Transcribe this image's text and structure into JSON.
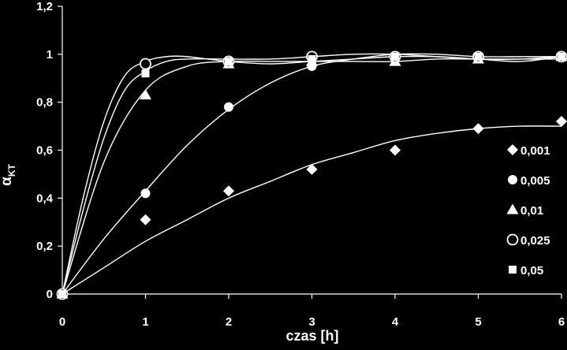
{
  "colors": {
    "background": "#000000",
    "foreground": "#ffffff"
  },
  "chart_data": {
    "type": "scatter",
    "title": "",
    "xlabel": "czas [h]",
    "ylabel_main": "α",
    "ylabel_sub": "KT",
    "xlim": [
      0,
      6
    ],
    "ylim": [
      0,
      1.2
    ],
    "xticks": [
      0,
      1,
      2,
      3,
      4,
      5,
      6
    ],
    "xtick_labels": [
      "0",
      "1",
      "2",
      "3",
      "4",
      "5",
      "6"
    ],
    "yticks": [
      0,
      0.2,
      0.4,
      0.6,
      0.8,
      1.0,
      1.2
    ],
    "ytick_labels": [
      "0",
      "0,2",
      "0,4",
      "0,6",
      "0,8",
      "1",
      "1,2"
    ],
    "grid": false,
    "legend_position": "right",
    "trendlines": "smooth curves through each series",
    "series": [
      {
        "name": "0,001",
        "marker": "diamond",
        "x": [
          0,
          1,
          2,
          3,
          4,
          5,
          6
        ],
        "y": [
          0,
          0.31,
          0.43,
          0.52,
          0.6,
          0.69,
          0.72
        ]
      },
      {
        "name": "0,005",
        "marker": "circle",
        "x": [
          0,
          1,
          2,
          3,
          4,
          5,
          6
        ],
        "y": [
          0,
          0.42,
          0.78,
          0.95,
          0.99,
          0.99,
          0.99
        ]
      },
      {
        "name": "0,01",
        "marker": "triangle",
        "x": [
          0,
          1,
          2,
          3,
          4,
          5,
          6
        ],
        "y": [
          0,
          0.83,
          0.96,
          0.97,
          0.97,
          0.98,
          0.99
        ]
      },
      {
        "name": "0,025",
        "marker": "open-circle",
        "x": [
          0,
          1,
          2,
          3,
          4,
          5,
          6
        ],
        "y": [
          0,
          0.96,
          0.97,
          0.99,
          0.99,
          0.99,
          0.99
        ]
      },
      {
        "name": "0,05",
        "marker": "square",
        "x": [
          0,
          1,
          2,
          3,
          4,
          5,
          6
        ],
        "y": [
          0,
          0.92,
          0.97,
          0.98,
          0.99,
          0.99,
          0.99
        ]
      }
    ],
    "fit_curves": [
      {
        "series": "0,001",
        "x": [
          0,
          0.5,
          1,
          1.5,
          2,
          2.5,
          3,
          3.5,
          4,
          4.5,
          5,
          5.5,
          6
        ],
        "y": [
          0,
          0.11,
          0.22,
          0.31,
          0.4,
          0.47,
          0.54,
          0.59,
          0.64,
          0.67,
          0.69,
          0.7,
          0.7
        ]
      },
      {
        "series": "0,005",
        "x": [
          0,
          0.5,
          1,
          1.5,
          2,
          2.5,
          3,
          3.5,
          4,
          4.5,
          5,
          5.5,
          6
        ],
        "y": [
          0,
          0.23,
          0.43,
          0.62,
          0.77,
          0.88,
          0.95,
          0.98,
          1.0,
          1.0,
          0.99,
          0.99,
          0.99
        ]
      },
      {
        "series": "0,01",
        "x": [
          0,
          0.5,
          1,
          1.5,
          2,
          2.5,
          3,
          3.5,
          4,
          4.5,
          5,
          5.5,
          6
        ],
        "y": [
          0,
          0.55,
          0.85,
          0.95,
          0.97,
          0.97,
          0.97,
          0.97,
          0.97,
          0.98,
          0.98,
          0.98,
          0.98
        ]
      },
      {
        "series": "0,025",
        "x": [
          0,
          0.25,
          0.5,
          0.75,
          1,
          1.25,
          1.5,
          2,
          2.5,
          3,
          3.5,
          4,
          4.5,
          5,
          5.5,
          6
        ],
        "y": [
          0,
          0.4,
          0.72,
          0.91,
          0.97,
          0.99,
          0.99,
          0.97,
          0.96,
          0.97,
          0.98,
          0.99,
          0.99,
          0.98,
          0.97,
          0.99
        ]
      },
      {
        "series": "0,05",
        "x": [
          0,
          0.25,
          0.5,
          0.75,
          1,
          1.25,
          1.5,
          2,
          2.5,
          3,
          3.5,
          4,
          4.5,
          5,
          5.5,
          6
        ],
        "y": [
          0,
          0.35,
          0.65,
          0.85,
          0.93,
          0.97,
          0.98,
          0.98,
          0.98,
          0.99,
          1.0,
          1.0,
          0.99,
          0.98,
          0.98,
          0.99
        ]
      }
    ]
  }
}
